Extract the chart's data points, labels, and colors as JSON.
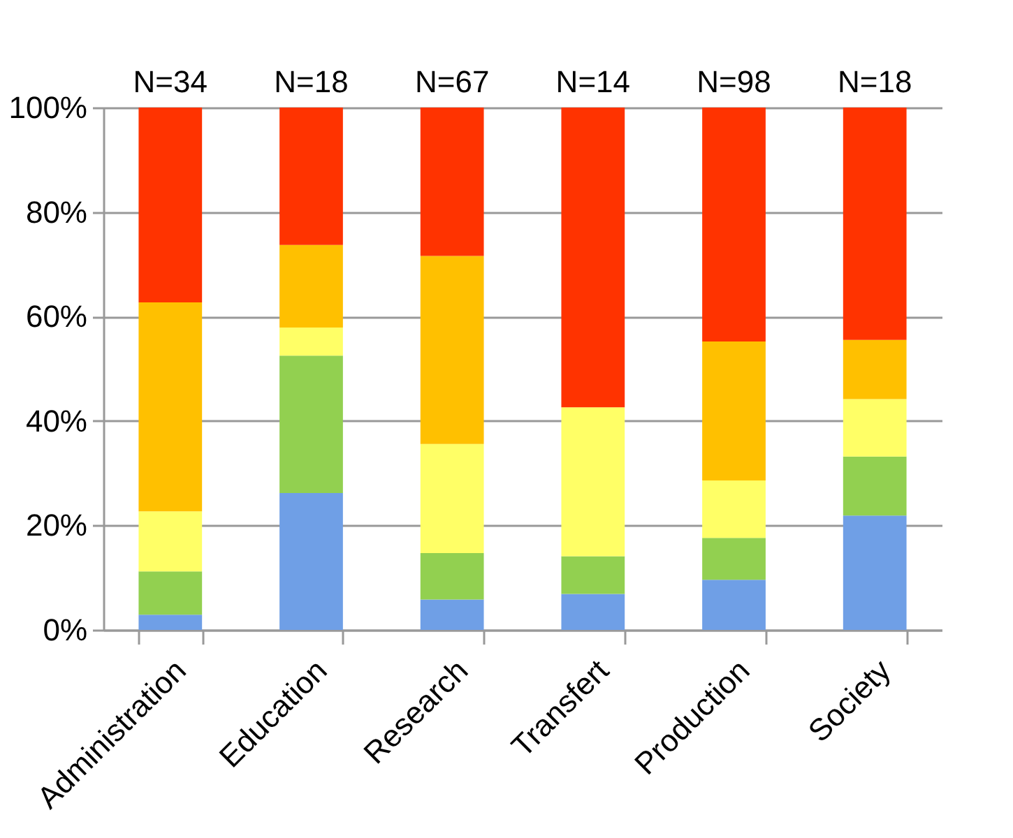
{
  "chart_data": {
    "type": "bar",
    "stacked": true,
    "categories": [
      "Administration",
      "Education",
      "Research",
      "Transfert",
      "Production",
      "Society"
    ],
    "series": [
      {
        "color": "#6f9fe6",
        "values": [
          2.9,
          26.2,
          5.8,
          6.9,
          9.6,
          21.9
        ]
      },
      {
        "color": "#92d050",
        "values": [
          8.3,
          26.3,
          8.9,
          7.2,
          8.0,
          11.3
        ]
      },
      {
        "color": "#ffff66",
        "values": [
          11.5,
          5.4,
          20.9,
          28.5,
          11.0,
          11.0
        ]
      },
      {
        "color": "#ffc000",
        "values": [
          40.0,
          15.8,
          36.0,
          0,
          26.6,
          11.3
        ]
      },
      {
        "color": "#ff3300",
        "values": [
          37.3,
          26.3,
          28.4,
          57.4,
          44.8,
          44.5
        ]
      }
    ],
    "ylim": [
      0,
      100
    ],
    "yticks": [
      {
        "value": 0,
        "label": "0%"
      },
      {
        "value": 20,
        "label": "20%"
      },
      {
        "value": 40,
        "label": "40%"
      },
      {
        "value": 60,
        "label": "60%"
      },
      {
        "value": 80,
        "label": "80%"
      },
      {
        "value": 100,
        "label": "100%"
      }
    ],
    "grid": "y",
    "annotations": [
      {
        "text": "N=34",
        "x": "Administration",
        "y": 100
      },
      {
        "text": "N=18",
        "x": "Education",
        "y": 100
      },
      {
        "text": "N=67",
        "x": "Research",
        "y": 100
      },
      {
        "text": "N=14",
        "x": "Transfert",
        "y": 100
      },
      {
        "text": "N=98",
        "x": "Production",
        "y": 100
      },
      {
        "text": "N=18",
        "x": "Society",
        "y": 100
      }
    ]
  }
}
